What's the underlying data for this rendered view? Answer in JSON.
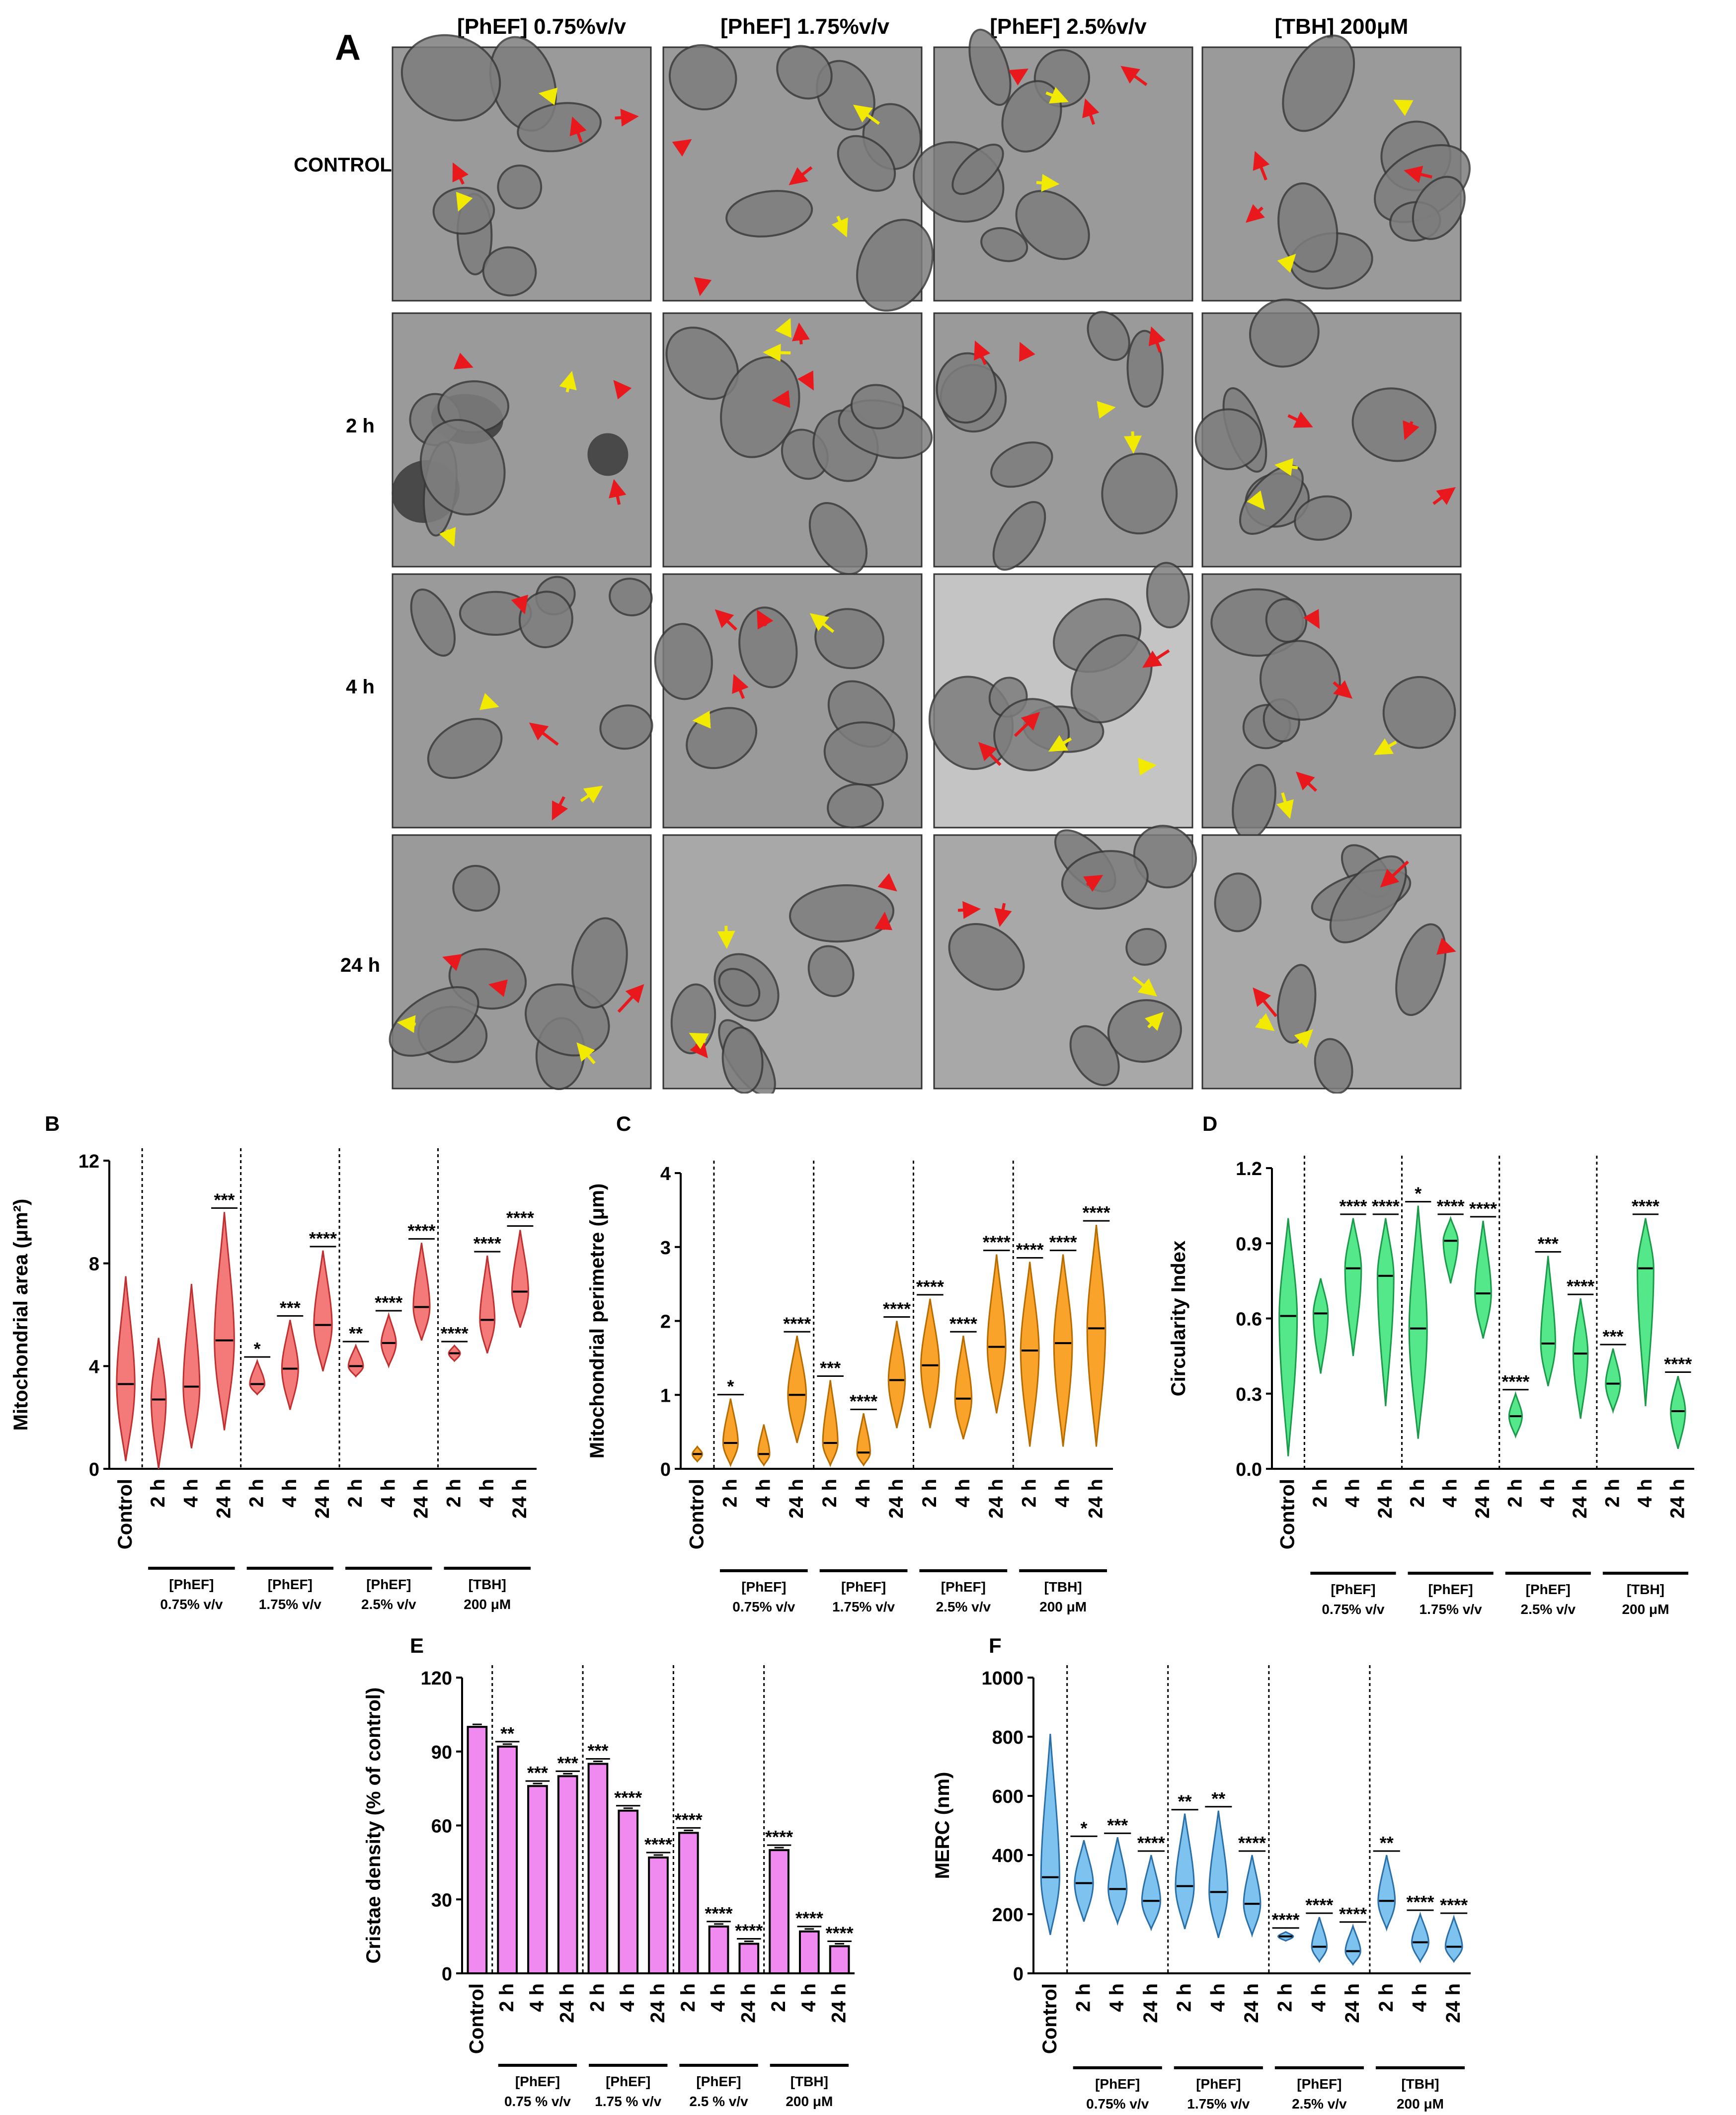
{
  "panel_a": {
    "label": "A",
    "columns": [
      "[PhEF] 0.75%v/v",
      "[PhEF] 1.75%v/v",
      "[PhEF] 2.5%v/v",
      "[TBH] 200μM"
    ],
    "rows": [
      "CONTROL",
      "2 h",
      "4 h",
      "24 h"
    ]
  },
  "colors": {
    "red_arrow": "#e8181c",
    "yellow_arrow": "#f2ea00",
    "tem_bg": "#9c9c9c",
    "tem_dark": "#4a4a4a"
  },
  "groups": [
    {
      "line1": "[PhEF]",
      "line2": "0.75% v/v"
    },
    {
      "line1": "[PhEF]",
      "line2": "1.75% v/v"
    },
    {
      "line1": "[PhEF]",
      "line2": "2.5% v/v"
    },
    {
      "line1": "[TBH]",
      "line2": "200 μM"
    }
  ],
  "groups_e": [
    {
      "line1": "[PhEF]",
      "line2": "0.75 % v/v"
    },
    {
      "line1": "[PhEF]",
      "line2": "1.75 % v/v"
    },
    {
      "line1": "[PhEF]",
      "line2": "2.5 % v/v"
    },
    {
      "line1": "[TBH]",
      "line2": "200 μM"
    }
  ],
  "chart_data": [
    {
      "panel": "B",
      "type": "violin",
      "color": "#f47a7a",
      "edge": "#c03030",
      "ylabel": "Mitochondrial area (μm²)",
      "ylim": [
        0,
        12
      ],
      "yticks": [
        "0",
        "4",
        "8",
        "12"
      ],
      "ytick_values": [
        0,
        4,
        8,
        12
      ],
      "categories": [
        "Control",
        "2 h",
        "4 h",
        "24 h",
        "2 h",
        "4 h",
        "24 h",
        "2 h",
        "4 h",
        "24 h",
        "2 h",
        "4 h",
        "24 h"
      ],
      "medians": [
        3.3,
        2.7,
        3.2,
        5.0,
        3.3,
        3.9,
        5.6,
        4.0,
        4.9,
        6.3,
        4.5,
        5.8,
        6.9
      ],
      "mins": [
        0.3,
        0.0,
        0.8,
        1.5,
        2.9,
        2.3,
        3.8,
        3.6,
        4.0,
        5.0,
        4.2,
        4.5,
        5.5
      ],
      "maxs": [
        7.5,
        5.1,
        7.2,
        10.0,
        4.2,
        5.8,
        8.5,
        4.8,
        6.0,
        8.8,
        4.8,
        8.3,
        9.3
      ],
      "widths": [
        0.55,
        0.45,
        0.5,
        0.6,
        0.45,
        0.5,
        0.55,
        0.45,
        0.45,
        0.5,
        0.35,
        0.45,
        0.5
      ],
      "significance": [
        "",
        "",
        "",
        "***",
        "*",
        "***",
        "****",
        "**",
        "****",
        "****",
        "****",
        "****",
        "****"
      ]
    },
    {
      "panel": "C",
      "type": "violin",
      "color": "#f9a32a",
      "edge": "#b86c00",
      "ylabel": "Mitochondrial perimetre (μm)",
      "ylim": [
        0,
        4
      ],
      "yticks": [
        "0",
        "1",
        "2",
        "3",
        "4"
      ],
      "ytick_values": [
        0,
        1,
        2,
        3,
        4
      ],
      "categories": [
        "Control",
        "2 h",
        "4 h",
        "24 h",
        "2 h",
        "4 h",
        "24 h",
        "2 h",
        "4 h",
        "24 h",
        "2 h",
        "4 h",
        "24 h"
      ],
      "medians": [
        0.2,
        0.35,
        0.2,
        1.0,
        0.35,
        0.22,
        1.2,
        1.4,
        0.95,
        1.65,
        1.6,
        1.7,
        1.9
      ],
      "mins": [
        0.1,
        0.05,
        0.05,
        0.35,
        0.05,
        0.05,
        0.55,
        0.55,
        0.4,
        0.75,
        0.3,
        0.3,
        0.3
      ],
      "maxs": [
        0.3,
        0.95,
        0.6,
        1.8,
        1.2,
        0.75,
        2.0,
        2.3,
        1.8,
        2.9,
        2.8,
        2.9,
        3.3
      ],
      "widths": [
        0.3,
        0.45,
        0.35,
        0.55,
        0.45,
        0.4,
        0.5,
        0.55,
        0.5,
        0.55,
        0.55,
        0.55,
        0.55
      ],
      "significance": [
        "",
        "*",
        "",
        "****",
        "***",
        "****",
        "****",
        "****",
        "****",
        "****",
        "****",
        "****",
        "****"
      ]
    },
    {
      "panel": "D",
      "type": "violin",
      "color": "#55e88a",
      "edge": "#1a9a4a",
      "ylabel": "Circularity Index",
      "ylim": [
        0,
        1.2
      ],
      "yticks": [
        "0.0",
        "0.3",
        "0.6",
        "0.9",
        "1.2"
      ],
      "ytick_values": [
        0,
        0.3,
        0.6,
        0.9,
        1.2
      ],
      "categories": [
        "Control",
        "2 h",
        "4 h",
        "24 h",
        "2 h",
        "4 h",
        "24 h",
        "2 h",
        "4 h",
        "24 h",
        "2 h",
        "4 h",
        "24 h"
      ],
      "medians": [
        0.61,
        0.62,
        0.8,
        0.77,
        0.56,
        0.91,
        0.7,
        0.21,
        0.5,
        0.46,
        0.34,
        0.8,
        0.23
      ],
      "mins": [
        0.05,
        0.38,
        0.45,
        0.25,
        0.12,
        0.74,
        0.52,
        0.13,
        0.33,
        0.2,
        0.23,
        0.25,
        0.08
      ],
      "maxs": [
        1.0,
        0.76,
        1.0,
        1.0,
        1.05,
        1.0,
        0.99,
        0.3,
        0.85,
        0.68,
        0.48,
        1.0,
        0.37
      ],
      "widths": [
        0.55,
        0.45,
        0.5,
        0.5,
        0.55,
        0.45,
        0.5,
        0.4,
        0.45,
        0.45,
        0.45,
        0.5,
        0.45
      ],
      "significance": [
        "",
        "",
        "****",
        "****",
        "*",
        "****",
        "****",
        "****",
        "***",
        "****",
        "***",
        "****",
        "****"
      ]
    },
    {
      "panel": "E",
      "type": "bar",
      "color": "#f08af0",
      "edge": "#000000",
      "ylabel": "Cristae density (% of control)",
      "ylim": [
        0,
        120
      ],
      "yticks": [
        "0",
        "30",
        "60",
        "90",
        "120"
      ],
      "ytick_values": [
        0,
        30,
        60,
        90,
        120
      ],
      "categories": [
        "Control",
        "2 h",
        "4 h",
        "24 h",
        "2 h",
        "4 h",
        "24 h",
        "2 h",
        "4 h",
        "24 h",
        "2 h",
        "4 h",
        "24 h"
      ],
      "values": [
        100,
        92,
        76,
        80,
        85,
        66,
        47,
        57,
        19,
        12,
        50,
        17,
        11
      ],
      "significance": [
        "",
        "**",
        "***",
        "***",
        "***",
        "****",
        "****",
        "****",
        "****",
        "****",
        "****",
        "****",
        "****"
      ]
    },
    {
      "panel": "F",
      "type": "violin",
      "color": "#7ec3f0",
      "edge": "#2a6fa8",
      "ylabel": "MERC (nm)",
      "ylim": [
        0,
        1000
      ],
      "yticks": [
        "0",
        "200",
        "400",
        "600",
        "800",
        "1000"
      ],
      "ytick_values": [
        0,
        200,
        400,
        600,
        800,
        1000
      ],
      "categories": [
        "Control",
        "2 h",
        "4 h",
        "24 h",
        "2 h",
        "4 h",
        "24 h",
        "2 h",
        "4 h",
        "24 h",
        "2 h",
        "4 h",
        "24 h"
      ],
      "medians": [
        325,
        305,
        285,
        245,
        295,
        275,
        235,
        125,
        90,
        75,
        245,
        105,
        90
      ],
      "mins": [
        130,
        175,
        170,
        150,
        150,
        120,
        130,
        110,
        40,
        30,
        150,
        40,
        40
      ],
      "maxs": [
        810,
        450,
        460,
        400,
        540,
        550,
        400,
        140,
        190,
        160,
        400,
        200,
        190
      ],
      "widths": [
        0.55,
        0.55,
        0.55,
        0.55,
        0.55,
        0.55,
        0.5,
        0.45,
        0.45,
        0.45,
        0.5,
        0.5,
        0.5
      ],
      "significance": [
        "",
        "*",
        "***",
        "****",
        "**",
        "**",
        "****",
        "****",
        "****",
        "****",
        "**",
        "****",
        "****"
      ]
    }
  ]
}
